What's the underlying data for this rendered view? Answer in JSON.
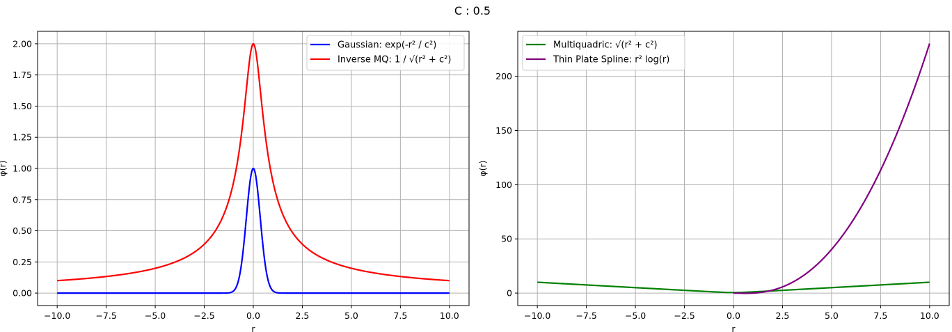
{
  "figure": {
    "suptitle": "C : 0.5",
    "c": 0.5
  },
  "chart_data": [
    {
      "type": "line",
      "xlabel": "r",
      "ylabel": "φ(r)",
      "xlim": [
        -11.0,
        11.0
      ],
      "ylim": [
        -0.1,
        2.1
      ],
      "xticks": [
        -10.0,
        -7.5,
        -5.0,
        -2.5,
        0.0,
        2.5,
        5.0,
        7.5,
        10.0
      ],
      "xtick_labels": [
        "−10.0",
        "−7.5",
        "−5.0",
        "−2.5",
        "0.0",
        "2.5",
        "5.0",
        "7.5",
        "10.0"
      ],
      "yticks": [
        0.0,
        0.25,
        0.5,
        0.75,
        1.0,
        1.25,
        1.5,
        1.75,
        2.0
      ],
      "ytick_labels": [
        "0.00",
        "0.25",
        "0.50",
        "0.75",
        "1.00",
        "1.25",
        "1.50",
        "1.75",
        "2.00"
      ],
      "grid": true,
      "legend_position": "top-right",
      "x": [
        -10,
        -8,
        -6,
        -4,
        -3,
        -2,
        -1.5,
        -1,
        -0.75,
        -0.5,
        -0.25,
        0,
        0.25,
        0.5,
        0.75,
        1,
        1.5,
        2,
        3,
        4,
        6,
        8,
        10
      ],
      "series": [
        {
          "name": "Gaussian: exp(-r² / c²)",
          "color": "#0000ff",
          "formula": "gaussian",
          "values": [
            0,
            0,
            0,
            0,
            0,
            0,
            0.0001,
            0.018,
            0.105,
            0.368,
            0.779,
            1.0,
            0.779,
            0.368,
            0.105,
            0.018,
            0.0001,
            0,
            0,
            0,
            0,
            0,
            0
          ]
        },
        {
          "name": "Inverse MQ: 1 / √(r² + c²)",
          "color": "#ff0000",
          "formula": "inverse_mq",
          "values": [
            0.0999,
            0.1248,
            0.1661,
            0.248,
            0.3288,
            0.4851,
            0.6325,
            0.8944,
            1.1094,
            1.4142,
            1.7889,
            2.0,
            1.7889,
            1.4142,
            1.1094,
            0.8944,
            0.6325,
            0.4851,
            0.3288,
            0.248,
            0.1661,
            0.1248,
            0.0999
          ]
        }
      ]
    },
    {
      "type": "line",
      "xlabel": "r",
      "ylabel": "φ(r)",
      "xlim": [
        -11.0,
        11.0
      ],
      "ylim": [
        -11.5,
        241.5
      ],
      "xticks": [
        -10.0,
        -7.5,
        -5.0,
        -2.5,
        0.0,
        2.5,
        5.0,
        7.5,
        10.0
      ],
      "xtick_labels": [
        "−10.0",
        "−7.5",
        "−5.0",
        "−2.5",
        "0.0",
        "2.5",
        "5.0",
        "7.5",
        "10.0"
      ],
      "yticks": [
        0,
        50,
        100,
        150,
        200
      ],
      "ytick_labels": [
        "0",
        "50",
        "100",
        "150",
        "200"
      ],
      "grid": true,
      "legend_position": "top-left",
      "x_multiquadric": [
        -10,
        -7.5,
        -5,
        -2.5,
        0,
        2.5,
        5,
        7.5,
        10
      ],
      "x_tps": [
        0,
        0.25,
        0.5,
        1,
        1.5,
        2,
        2.5,
        3,
        4,
        5,
        6,
        7,
        8,
        9,
        10
      ],
      "series": [
        {
          "name": "Multiquadric: √(r² + c²)",
          "color": "#008000",
          "formula": "multiquadric",
          "values": [
            10.0125,
            7.5166,
            5.0249,
            2.5495,
            0.5,
            2.5495,
            5.0249,
            7.5166,
            10.0125
          ]
        },
        {
          "name": "Thin Plate Spline: r² log(r)",
          "color": "#800080",
          "formula": "thin_plate_spline",
          "values": [
            0,
            -0.087,
            -0.173,
            0,
            0.912,
            2.773,
            5.727,
            9.888,
            22.181,
            40.236,
            64.503,
            95.349,
            133.084,
            177.975,
            230.259
          ]
        }
      ]
    }
  ]
}
